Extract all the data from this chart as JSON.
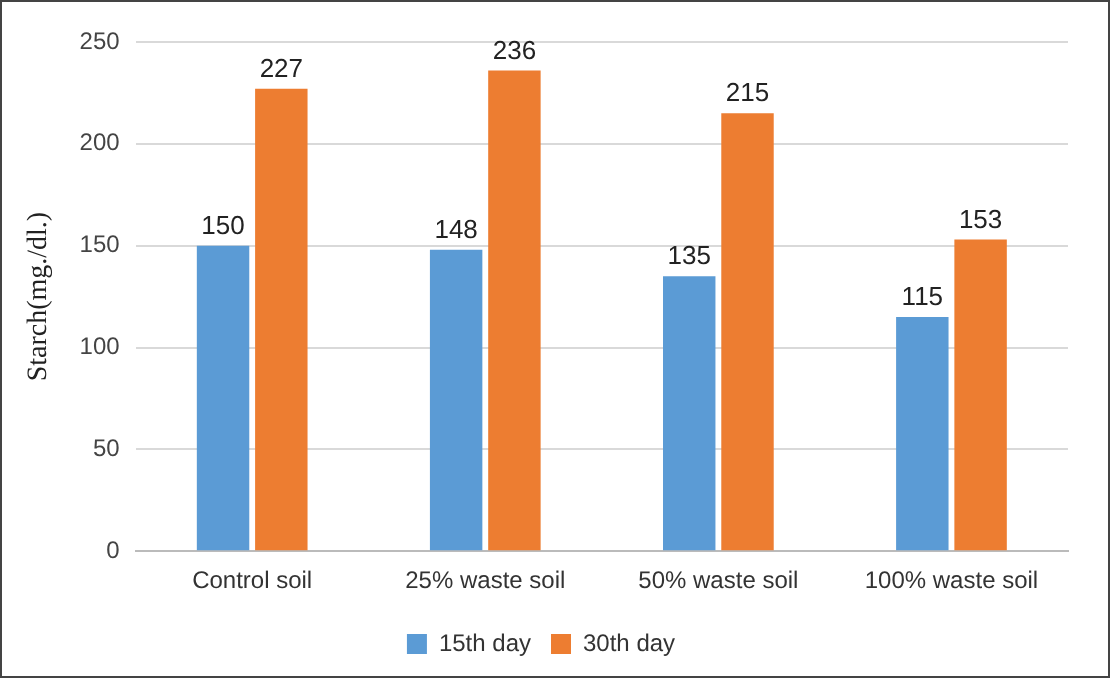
{
  "chart_data": {
    "type": "bar",
    "ylabel": "Starch(mg./dl.)",
    "categories": [
      "Control soil",
      "25% waste soil",
      "50% waste soil",
      "100% waste soil"
    ],
    "series": [
      {
        "name": "15th day",
        "color": "#5b9bd5",
        "values": [
          150,
          148,
          135,
          115
        ]
      },
      {
        "name": "30th day",
        "color": "#ed7d31",
        "values": [
          227,
          236,
          215,
          153
        ]
      }
    ],
    "ylim": [
      0,
      250
    ],
    "yticks": [
      0,
      50,
      100,
      150,
      200,
      250
    ],
    "grid": "y",
    "legend": "bottom",
    "data_labels": true
  }
}
